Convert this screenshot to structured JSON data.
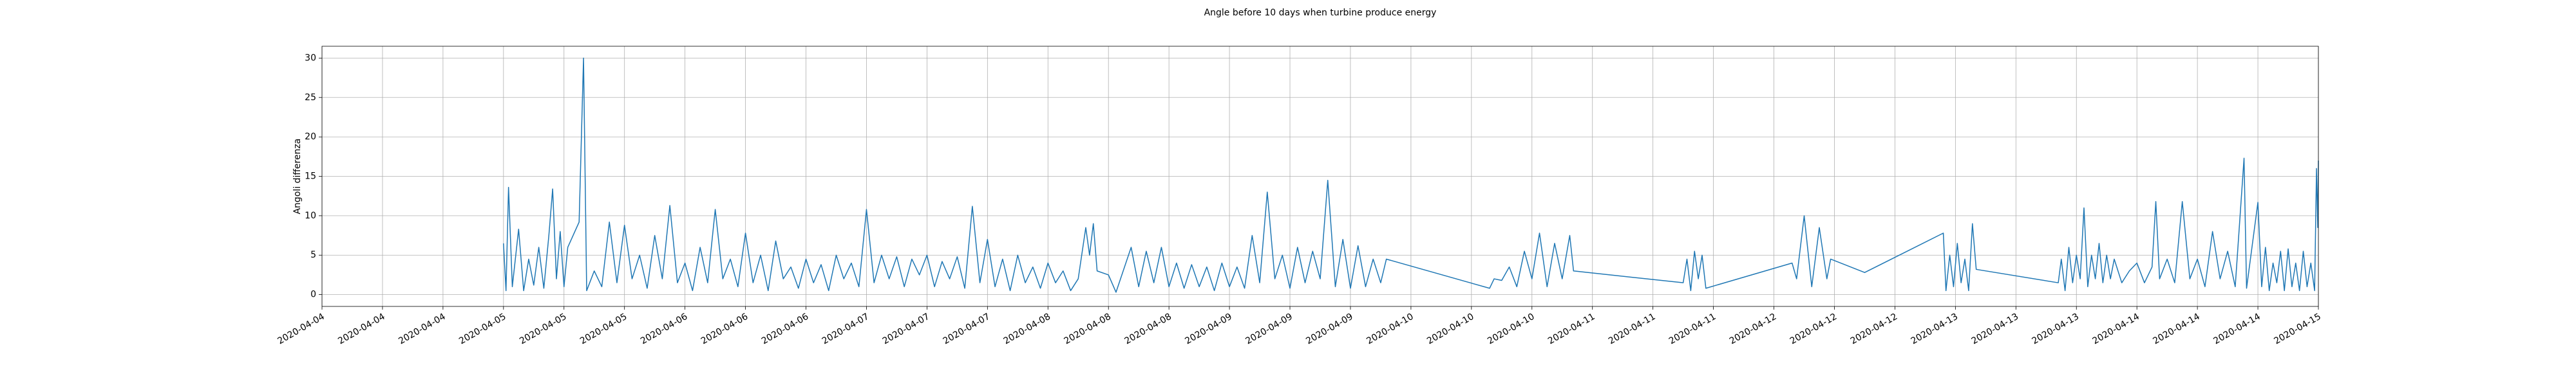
{
  "chart_data": {
    "type": "line",
    "title": "Angle before 10 days when turbine produce energy",
    "y_label": "Angoli differenza",
    "color": "#1f77b4",
    "grid": true,
    "xlim": [
      "2020-04-04T00:00",
      "2020-04-15T00:00"
    ],
    "ylim": [
      -1.5,
      31.5
    ],
    "yticks": [
      0,
      5,
      10,
      15,
      20,
      25,
      30
    ],
    "xticks": [
      {
        "value": "2020-04-04T00:00",
        "label": "2020-04-04"
      },
      {
        "value": "2020-04-04T08:00",
        "label": "2020-04-04"
      },
      {
        "value": "2020-04-04T16:00",
        "label": "2020-04-04"
      },
      {
        "value": "2020-04-05T00:00",
        "label": "2020-04-05"
      },
      {
        "value": "2020-04-05T08:00",
        "label": "2020-04-05"
      },
      {
        "value": "2020-04-05T16:00",
        "label": "2020-04-05"
      },
      {
        "value": "2020-04-06T00:00",
        "label": "2020-04-06"
      },
      {
        "value": "2020-04-06T08:00",
        "label": "2020-04-06"
      },
      {
        "value": "2020-04-06T16:00",
        "label": "2020-04-06"
      },
      {
        "value": "2020-04-07T00:00",
        "label": "2020-04-07"
      },
      {
        "value": "2020-04-07T08:00",
        "label": "2020-04-07"
      },
      {
        "value": "2020-04-07T16:00",
        "label": "2020-04-07"
      },
      {
        "value": "2020-04-08T00:00",
        "label": "2020-04-08"
      },
      {
        "value": "2020-04-08T08:00",
        "label": "2020-04-08"
      },
      {
        "value": "2020-04-08T16:00",
        "label": "2020-04-08"
      },
      {
        "value": "2020-04-09T00:00",
        "label": "2020-04-09"
      },
      {
        "value": "2020-04-09T08:00",
        "label": "2020-04-09"
      },
      {
        "value": "2020-04-09T16:00",
        "label": "2020-04-09"
      },
      {
        "value": "2020-04-10T00:00",
        "label": "2020-04-10"
      },
      {
        "value": "2020-04-10T08:00",
        "label": "2020-04-10"
      },
      {
        "value": "2020-04-10T16:00",
        "label": "2020-04-10"
      },
      {
        "value": "2020-04-11T00:00",
        "label": "2020-04-11"
      },
      {
        "value": "2020-04-11T08:00",
        "label": "2020-04-11"
      },
      {
        "value": "2020-04-11T16:00",
        "label": "2020-04-11"
      },
      {
        "value": "2020-04-12T00:00",
        "label": "2020-04-12"
      },
      {
        "value": "2020-04-12T08:00",
        "label": "2020-04-12"
      },
      {
        "value": "2020-04-12T16:00",
        "label": "2020-04-12"
      },
      {
        "value": "2020-04-13T00:00",
        "label": "2020-04-13"
      },
      {
        "value": "2020-04-13T08:00",
        "label": "2020-04-13"
      },
      {
        "value": "2020-04-13T16:00",
        "label": "2020-04-13"
      },
      {
        "value": "2020-04-14T00:00",
        "label": "2020-04-14"
      },
      {
        "value": "2020-04-14T08:00",
        "label": "2020-04-14"
      },
      {
        "value": "2020-04-14T16:00",
        "label": "2020-04-14"
      },
      {
        "value": "2020-04-15T00:00",
        "label": "2020-04-15"
      }
    ],
    "x": [
      "2020-04-05T00:00",
      "2020-04-05T00:20",
      "2020-04-05T00:40",
      "2020-04-05T01:10",
      "2020-04-05T02:00",
      "2020-04-05T02:40",
      "2020-04-05T03:20",
      "2020-04-05T04:00",
      "2020-04-05T04:40",
      "2020-04-05T05:20",
      "2020-04-05T06:00",
      "2020-04-05T06:30",
      "2020-04-05T07:00",
      "2020-04-05T07:30",
      "2020-04-05T08:00",
      "2020-04-05T08:30",
      "2020-04-05T10:00",
      "2020-04-05T10:35",
      "2020-04-05T11:00",
      "2020-04-05T12:00",
      "2020-04-05T13:00",
      "2020-04-05T14:00",
      "2020-04-05T15:00",
      "2020-04-05T16:00",
      "2020-04-05T17:00",
      "2020-04-05T18:00",
      "2020-04-05T19:00",
      "2020-04-05T20:00",
      "2020-04-05T21:00",
      "2020-04-05T22:00",
      "2020-04-05T23:00",
      "2020-04-06T00:00",
      "2020-04-06T01:00",
      "2020-04-06T02:00",
      "2020-04-06T03:00",
      "2020-04-06T04:00",
      "2020-04-06T05:00",
      "2020-04-06T06:00",
      "2020-04-06T07:00",
      "2020-04-06T08:00",
      "2020-04-06T09:00",
      "2020-04-06T10:00",
      "2020-04-06T11:00",
      "2020-04-06T12:00",
      "2020-04-06T13:00",
      "2020-04-06T14:00",
      "2020-04-06T15:00",
      "2020-04-06T16:00",
      "2020-04-06T17:00",
      "2020-04-06T18:00",
      "2020-04-06T19:00",
      "2020-04-06T20:00",
      "2020-04-06T21:00",
      "2020-04-06T22:00",
      "2020-04-06T23:00",
      "2020-04-07T00:00",
      "2020-04-07T01:00",
      "2020-04-07T02:00",
      "2020-04-07T03:00",
      "2020-04-07T04:00",
      "2020-04-07T05:00",
      "2020-04-07T06:00",
      "2020-04-07T07:00",
      "2020-04-07T08:00",
      "2020-04-07T09:00",
      "2020-04-07T10:00",
      "2020-04-07T11:00",
      "2020-04-07T12:00",
      "2020-04-07T13:00",
      "2020-04-07T14:00",
      "2020-04-07T15:00",
      "2020-04-07T16:00",
      "2020-04-07T17:00",
      "2020-04-07T18:00",
      "2020-04-07T19:00",
      "2020-04-07T20:00",
      "2020-04-07T21:00",
      "2020-04-07T22:00",
      "2020-04-07T23:00",
      "2020-04-08T00:00",
      "2020-04-08T01:00",
      "2020-04-08T02:00",
      "2020-04-08T03:00",
      "2020-04-08T04:00",
      "2020-04-08T05:00",
      "2020-04-08T05:30",
      "2020-04-08T06:00",
      "2020-04-08T06:30",
      "2020-04-08T08:00",
      "2020-04-08T09:00",
      "2020-04-08T11:00",
      "2020-04-08T12:00",
      "2020-04-08T13:00",
      "2020-04-08T14:00",
      "2020-04-08T15:00",
      "2020-04-08T16:00",
      "2020-04-08T17:00",
      "2020-04-08T18:00",
      "2020-04-08T19:00",
      "2020-04-08T20:00",
      "2020-04-08T21:00",
      "2020-04-08T22:00",
      "2020-04-08T23:00",
      "2020-04-09T00:00",
      "2020-04-09T01:00",
      "2020-04-09T02:00",
      "2020-04-09T03:00",
      "2020-04-09T04:00",
      "2020-04-09T05:00",
      "2020-04-09T06:00",
      "2020-04-09T07:00",
      "2020-04-09T08:00",
      "2020-04-09T09:00",
      "2020-04-09T10:00",
      "2020-04-09T11:00",
      "2020-04-09T12:00",
      "2020-04-09T13:00",
      "2020-04-09T14:00",
      "2020-04-09T15:00",
      "2020-04-09T16:00",
      "2020-04-09T17:00",
      "2020-04-09T18:00",
      "2020-04-09T19:00",
      "2020-04-09T20:00",
      "2020-04-09T20:45",
      "2020-04-10T10:24",
      "2020-04-10T11:00",
      "2020-04-10T12:00",
      "2020-04-10T13:00",
      "2020-04-10T14:00",
      "2020-04-10T15:00",
      "2020-04-10T16:00",
      "2020-04-10T17:00",
      "2020-04-10T18:00",
      "2020-04-10T19:00",
      "2020-04-10T20:00",
      "2020-04-10T21:00",
      "2020-04-10T21:30",
      "2020-04-11T12:00",
      "2020-04-11T12:30",
      "2020-04-11T13:00",
      "2020-04-11T13:30",
      "2020-04-11T14:00",
      "2020-04-11T14:30",
      "2020-04-11T15:00",
      "2020-04-12T02:24",
      "2020-04-12T03:00",
      "2020-04-12T04:00",
      "2020-04-12T05:00",
      "2020-04-12T06:00",
      "2020-04-12T07:00",
      "2020-04-12T07:30",
      "2020-04-12T12:00",
      "2020-04-12T22:24",
      "2020-04-12T22:45",
      "2020-04-12T23:15",
      "2020-04-12T23:45",
      "2020-04-13T00:15",
      "2020-04-13T00:45",
      "2020-04-13T01:15",
      "2020-04-13T01:45",
      "2020-04-13T02:15",
      "2020-04-13T02:45",
      "2020-04-13T13:36",
      "2020-04-13T14:00",
      "2020-04-13T14:30",
      "2020-04-13T15:00",
      "2020-04-13T15:30",
      "2020-04-13T16:00",
      "2020-04-13T16:30",
      "2020-04-13T17:00",
      "2020-04-13T17:30",
      "2020-04-13T18:00",
      "2020-04-13T18:30",
      "2020-04-13T19:00",
      "2020-04-13T19:30",
      "2020-04-13T20:00",
      "2020-04-13T20:30",
      "2020-04-13T21:00",
      "2020-04-13T22:00",
      "2020-04-13T23:00",
      "2020-04-14T00:00",
      "2020-04-14T01:00",
      "2020-04-14T02:00",
      "2020-04-14T02:30",
      "2020-04-14T03:00",
      "2020-04-14T04:00",
      "2020-04-14T05:00",
      "2020-04-14T06:00",
      "2020-04-14T07:00",
      "2020-04-14T08:00",
      "2020-04-14T09:00",
      "2020-04-14T10:00",
      "2020-04-14T11:00",
      "2020-04-14T12:00",
      "2020-04-14T13:00",
      "2020-04-14T14:10",
      "2020-04-14T14:30",
      "2020-04-14T16:00",
      "2020-04-14T16:30",
      "2020-04-14T17:00",
      "2020-04-14T17:30",
      "2020-04-14T18:00",
      "2020-04-14T18:30",
      "2020-04-14T19:00",
      "2020-04-14T19:30",
      "2020-04-14T20:00",
      "2020-04-14T20:30",
      "2020-04-14T21:00",
      "2020-04-14T21:30",
      "2020-04-14T22:00",
      "2020-04-14T22:30",
      "2020-04-14T23:00",
      "2020-04-14T23:30",
      "2020-04-14T23:45",
      "2020-04-14T23:55",
      "2020-04-15T00:00"
    ],
    "values": [
      6.5,
      0.5,
      13.6,
      1,
      8.3,
      0.5,
      4.5,
      1.2,
      6,
      0.8,
      7.5,
      13.4,
      2,
      8,
      1,
      6,
      9.2,
      30,
      0.5,
      3,
      1,
      9.2,
      1.5,
      8.8,
      2,
      5,
      0.8,
      7.5,
      2,
      11.3,
      1.5,
      4,
      0.5,
      6,
      1.5,
      10.8,
      2,
      4.5,
      1,
      7.8,
      1.5,
      5,
      0.5,
      6.8,
      2,
      3.5,
      0.8,
      4.5,
      1.5,
      3.8,
      0.5,
      5,
      2,
      4,
      1,
      10.8,
      1.5,
      5,
      2,
      4.8,
      1,
      4.5,
      2.5,
      5,
      1,
      4.2,
      2,
      4.8,
      0.8,
      11.2,
      1.5,
      7,
      1,
      4.5,
      0.5,
      5,
      1.5,
      3.5,
      0.8,
      4,
      1.5,
      3,
      0.5,
      2,
      8.5,
      5,
      9,
      3,
      2.5,
      0.3,
      6,
      1,
      5.5,
      1.5,
      6,
      1,
      4,
      0.8,
      3.8,
      1,
      3.5,
      0.5,
      4,
      1,
      3.5,
      0.8,
      7.5,
      1.5,
      13,
      2,
      5,
      0.8,
      6,
      1.5,
      5.5,
      2,
      14.5,
      1,
      7,
      0.8,
      6.2,
      1,
      4.5,
      1.5,
      4.5,
      0.8,
      2,
      1.8,
      3.5,
      1,
      5.5,
      2,
      7.8,
      1,
      6.5,
      2,
      7.5,
      3,
      1.5,
      4.5,
      0.5,
      5.5,
      2,
      5,
      0.8,
      4,
      2,
      10,
      1,
      8.5,
      2,
      4.5,
      2.8,
      7.8,
      0.5,
      5,
      1,
      6.5,
      1.5,
      4.5,
      0.5,
      9,
      3.2,
      1.5,
      4.5,
      0.5,
      6,
      1.5,
      5,
      2,
      11,
      1,
      5,
      2,
      6.5,
      1.5,
      5,
      2,
      4.5,
      1.5,
      3,
      4,
      1.5,
      3.5,
      11.8,
      2,
      4.5,
      1.5,
      11.8,
      2,
      4.5,
      1,
      8,
      2,
      5.5,
      1,
      17.3,
      0.8,
      11.7,
      1,
      6,
      0.5,
      4,
      1.5,
      5.5,
      0.5,
      5.8,
      1,
      4,
      0.5,
      5.5,
      1,
      4,
      0.5,
      16,
      8.5,
      17
    ]
  }
}
